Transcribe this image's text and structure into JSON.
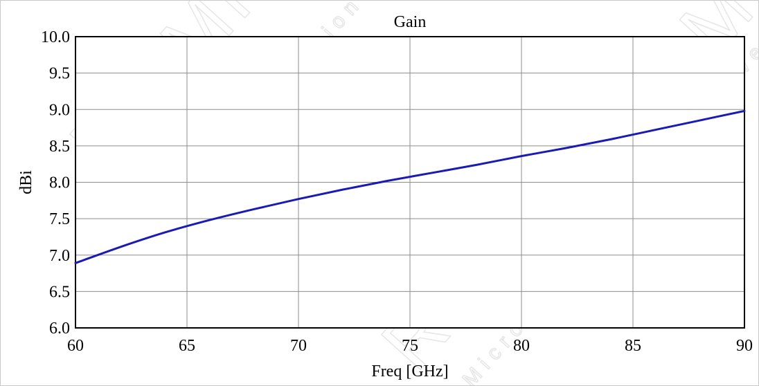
{
  "chart_data": {
    "type": "line",
    "title": "Gain",
    "xlabel": "Freq [GHz]",
    "ylabel": "dBi",
    "xlim": [
      60,
      90
    ],
    "ylim": [
      6.0,
      10.0
    ],
    "xticks": [
      60,
      65,
      70,
      75,
      80,
      85,
      90
    ],
    "yticks": [
      6.0,
      6.5,
      7.0,
      7.5,
      8.0,
      8.5,
      9.0,
      9.5,
      10.0
    ],
    "grid": true,
    "series": [
      {
        "color": "#1a1ab4",
        "x": [
          60,
          62,
          64,
          66,
          68,
          70,
          72,
          74,
          76,
          78,
          80,
          82,
          84,
          86,
          88,
          90
        ],
        "y": [
          6.89,
          7.11,
          7.31,
          7.48,
          7.63,
          7.77,
          7.9,
          8.02,
          8.13,
          8.24,
          8.36,
          8.47,
          8.59,
          8.72,
          8.85,
          8.98
        ]
      }
    ]
  },
  "watermarks": [
    {
      "text": "RF MISO",
      "kind": "logo"
    },
    {
      "text": "Microwave Solution",
      "kind": "logo"
    },
    {
      "text": "RF Microwave",
      "kind": "logo"
    }
  ]
}
